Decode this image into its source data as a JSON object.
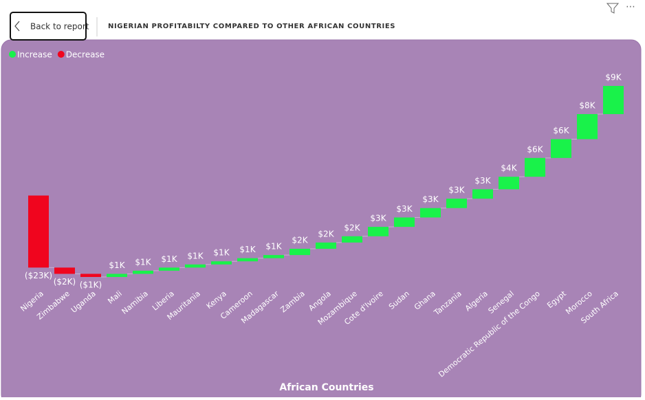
{
  "back_button": "Back to report",
  "chart_data": {
    "type": "waterfall",
    "title": "NIGERIAN PROFITABILTY COMPARED TO OTHER AFRICAN COUNTRIES",
    "legend": [
      {
        "name": "Increase",
        "color": "#19f24a"
      },
      {
        "name": "Decrease",
        "color": "#f0051e"
      }
    ],
    "x_label": "African Countries",
    "categories": [
      "Nigeria",
      "Zimbabwe",
      "Uganda",
      "Mali",
      "Namibia",
      "Liberia",
      "Mauritania",
      "Kenya",
      "Cameroon",
      "Madagascar",
      "Zambia",
      "Angola",
      "Mozambique",
      "Cote d'Ivoire",
      "Sudan",
      "Ghana",
      "Tanzania",
      "Algeria",
      "Senegal",
      "Democratic Republic of the Congo",
      "Egypt",
      "Morocco",
      "South Africa"
    ],
    "values": [
      -23,
      -2,
      -1,
      1,
      1,
      1,
      1,
      1,
      1,
      1,
      2,
      2,
      2,
      3,
      3,
      3,
      3,
      3,
      4,
      6,
      6,
      8,
      9
    ],
    "value_labels": [
      "($23K)",
      "($2K)",
      "($1K)",
      "$1K",
      "$1K",
      "$1K",
      "$1K",
      "$1K",
      "$1K",
      "$1K",
      "$2K",
      "$2K",
      "$2K",
      "$3K",
      "$3K",
      "$3K",
      "$3K",
      "$3K",
      "$4K",
      "$6K",
      "$6K",
      "$8K",
      "$9K"
    ]
  }
}
